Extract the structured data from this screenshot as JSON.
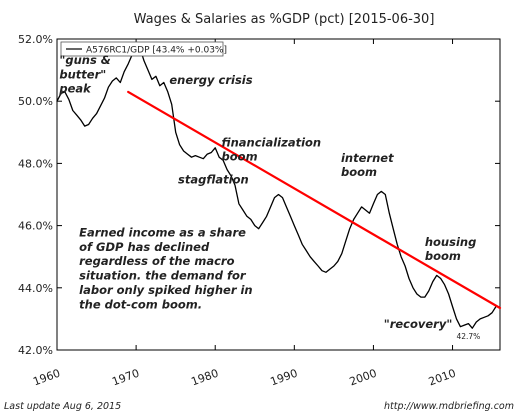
{
  "chart_data": {
    "type": "line",
    "title": "Wages & Salaries as %GDP (pct) [2015-06-30]",
    "xlabel": "",
    "ylabel": "",
    "xlim": [
      1960,
      2016
    ],
    "ylim": [
      42.0,
      52.0
    ],
    "x_ticks": [
      1960,
      1970,
      1980,
      1990,
      2000,
      2010
    ],
    "x_tick_labels": [
      "1960",
      "1970",
      "1980",
      "1990",
      "2000",
      "2010"
    ],
    "y_ticks": [
      42,
      44,
      46,
      48,
      50,
      52
    ],
    "y_tick_labels": [
      "42.0%",
      "44.0%",
      "46.0%",
      "48.0%",
      "50.0%",
      "52.0%"
    ],
    "legend": {
      "label": "A576RC1/GDP [43.4% +0.03%]",
      "placement": "top-left"
    },
    "series": [
      {
        "name": "A576RC1/GDP [43.4% +0.03%]",
        "color": "#000000",
        "points": [
          [
            1960,
            50.0
          ],
          [
            1960.5,
            50.25
          ],
          [
            1961,
            50.3
          ],
          [
            1961.5,
            50.05
          ],
          [
            1962,
            49.7
          ],
          [
            1962.5,
            49.55
          ],
          [
            1963,
            49.4
          ],
          [
            1963.5,
            49.2
          ],
          [
            1964,
            49.25
          ],
          [
            1964.5,
            49.45
          ],
          [
            1965,
            49.6
          ],
          [
            1965.5,
            49.85
          ],
          [
            1966,
            50.1
          ],
          [
            1966.5,
            50.45
          ],
          [
            1967,
            50.65
          ],
          [
            1967.5,
            50.75
          ],
          [
            1968,
            50.6
          ],
          [
            1968.5,
            50.95
          ],
          [
            1969,
            51.2
          ],
          [
            1969.5,
            51.5
          ],
          [
            1970,
            51.9
          ],
          [
            1970.5,
            51.7
          ],
          [
            1971,
            51.3
          ],
          [
            1971.5,
            51.0
          ],
          [
            1972,
            50.7
          ],
          [
            1972.5,
            50.8
          ],
          [
            1973,
            50.5
          ],
          [
            1973.5,
            50.6
          ],
          [
            1974,
            50.3
          ],
          [
            1974.5,
            49.9
          ],
          [
            1975,
            49.0
          ],
          [
            1975.5,
            48.6
          ],
          [
            1976,
            48.4
          ],
          [
            1976.5,
            48.3
          ],
          [
            1977,
            48.2
          ],
          [
            1977.5,
            48.25
          ],
          [
            1978,
            48.2
          ],
          [
            1978.5,
            48.15
          ],
          [
            1979,
            48.3
          ],
          [
            1979.5,
            48.35
          ],
          [
            1980,
            48.5
          ],
          [
            1980.5,
            48.2
          ],
          [
            1981,
            48.1
          ],
          [
            1981.5,
            47.8
          ],
          [
            1982,
            47.6
          ],
          [
            1982.5,
            47.3
          ],
          [
            1983,
            46.7
          ],
          [
            1983.5,
            46.5
          ],
          [
            1984,
            46.3
          ],
          [
            1984.5,
            46.2
          ],
          [
            1985,
            46.0
          ],
          [
            1985.5,
            45.9
          ],
          [
            1986,
            46.1
          ],
          [
            1986.5,
            46.3
          ],
          [
            1987,
            46.6
          ],
          [
            1987.5,
            46.9
          ],
          [
            1988,
            47.0
          ],
          [
            1988.5,
            46.9
          ],
          [
            1989,
            46.6
          ],
          [
            1989.5,
            46.3
          ],
          [
            1990,
            46.0
          ],
          [
            1990.5,
            45.7
          ],
          [
            1991,
            45.4
          ],
          [
            1991.5,
            45.2
          ],
          [
            1992,
            45.0
          ],
          [
            1992.5,
            44.85
          ],
          [
            1993,
            44.7
          ],
          [
            1993.5,
            44.55
          ],
          [
            1994,
            44.5
          ],
          [
            1994.5,
            44.6
          ],
          [
            1995,
            44.7
          ],
          [
            1995.5,
            44.85
          ],
          [
            1996,
            45.1
          ],
          [
            1996.5,
            45.5
          ],
          [
            1997,
            45.9
          ],
          [
            1997.5,
            46.2
          ],
          [
            1998,
            46.4
          ],
          [
            1998.5,
            46.6
          ],
          [
            1999,
            46.5
          ],
          [
            1999.5,
            46.4
          ],
          [
            2000,
            46.7
          ],
          [
            2000.5,
            47.0
          ],
          [
            2001,
            47.1
          ],
          [
            2001.5,
            47.0
          ],
          [
            2002,
            46.4
          ],
          [
            2002.5,
            45.9
          ],
          [
            2003,
            45.4
          ],
          [
            2003.5,
            45.0
          ],
          [
            2004,
            44.7
          ],
          [
            2004.5,
            44.3
          ],
          [
            2005,
            44.0
          ],
          [
            2005.5,
            43.8
          ],
          [
            2006,
            43.7
          ],
          [
            2006.5,
            43.7
          ],
          [
            2007,
            43.9
          ],
          [
            2007.5,
            44.2
          ],
          [
            2008,
            44.4
          ],
          [
            2008.5,
            44.3
          ],
          [
            2009,
            44.1
          ],
          [
            2009.5,
            43.8
          ],
          [
            2010,
            43.4
          ],
          [
            2010.5,
            43.0
          ],
          [
            2011,
            42.75
          ],
          [
            2011.5,
            42.8
          ],
          [
            2012,
            42.85
          ],
          [
            2012.5,
            42.7
          ],
          [
            2013,
            42.9
          ],
          [
            2013.5,
            43.0
          ],
          [
            2014,
            43.05
          ],
          [
            2014.5,
            43.1
          ],
          [
            2015,
            43.2
          ],
          [
            2015.5,
            43.4
          ]
        ]
      },
      {
        "name": "",
        "color": "#ff0000",
        "points": [
          [
            1969,
            50.3
          ],
          [
            2016,
            43.35
          ]
        ]
      }
    ],
    "min_label": {
      "text": "42.7%",
      "x": 2012,
      "y": 42.7
    },
    "annotations": [
      {
        "lines": [
          "\"guns &",
          "butter\"",
          "peak"
        ],
        "x": 1960.3,
        "y": 51.2
      },
      {
        "lines": [
          "energy crisis"
        ],
        "x": 1974.2,
        "y": 50.55
      },
      {
        "lines": [
          "financialization",
          "boom"
        ],
        "x": 1980.8,
        "y": 48.55
      },
      {
        "lines": [
          "internet",
          "boom"
        ],
        "x": 1995.9,
        "y": 48.05
      },
      {
        "lines": [
          "stagflation"
        ],
        "x": 1975.3,
        "y": 47.35
      },
      {
        "lines": [
          "housing",
          "boom"
        ],
        "x": 2006.5,
        "y": 45.35
      },
      {
        "lines": [
          "\"recovery\""
        ],
        "x": 2001.3,
        "y": 42.7
      },
      {
        "lines": [
          "Earned income as a share",
          "of GDP has declined",
          "regardless of the macro",
          "situation. the demand for",
          "labor only spiked higher in",
          "the dot-com boom."
        ],
        "x": 1962.8,
        "y": 45.65
      }
    ],
    "grid": false
  },
  "footer": {
    "left": "Last update Aug  6, 2015",
    "right": "http://www.mdbriefing.com"
  }
}
